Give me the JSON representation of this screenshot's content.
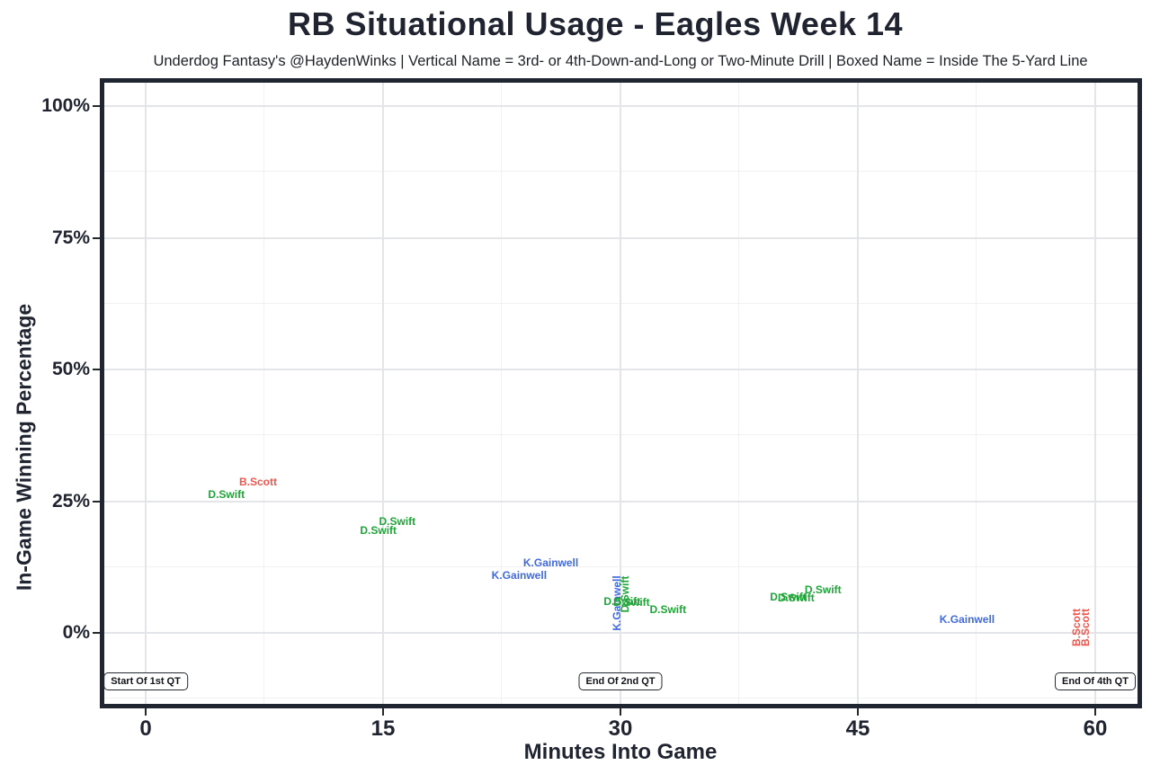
{
  "header": {
    "title": "RB Situational Usage - Eagles Week 14",
    "subtitle": "Underdog Fantasy's @HaydenWinks | Vertical Name = 3rd- or 4th-Down-and-Long or Two-Minute Drill | Boxed Name = Inside The 5-Yard Line"
  },
  "colors": {
    "d_swift": "#1ea537",
    "k_gainwell": "#4169e1",
    "b_scott": "#f2544b",
    "axis_text": "#1f2430",
    "panel_border": "#202532",
    "grid_major": "#e4e5e9",
    "grid_minor": "#f1f1f4"
  },
  "chart_data": {
    "type": "scatter",
    "title": "RB Situational Usage - Eagles Week 14",
    "xlabel": "Minutes Into Game",
    "ylabel": "In-Game Winning Percentage",
    "x_ticks": [
      {
        "value": 0,
        "label": "0"
      },
      {
        "value": 15,
        "label": "15"
      },
      {
        "value": 30,
        "label": "30"
      },
      {
        "value": 45,
        "label": "45"
      },
      {
        "value": 60,
        "label": "60"
      }
    ],
    "y_ticks": [
      {
        "value": 0,
        "label": "0%"
      },
      {
        "value": 25,
        "label": "25%"
      },
      {
        "value": 50,
        "label": "50%"
      },
      {
        "value": 75,
        "label": "75%"
      },
      {
        "value": 100,
        "label": "100%"
      }
    ],
    "x_minor_ticks": [
      7.5,
      22.5,
      37.5,
      52.5
    ],
    "y_minor_ticks": [
      -12.5,
      12.5,
      37.5,
      62.5,
      87.5
    ],
    "xlim": [
      -2.9,
      63
    ],
    "ylim": [
      -13.5,
      104.5
    ],
    "grid": true,
    "legend_position": "none",
    "series_colors": {
      "D.Swift": "#1ea537",
      "K.Gainwell": "#4169e1",
      "B.Scott": "#f2544b"
    },
    "points": [
      {
        "player": "B.Scott",
        "minutes": 7.1,
        "win_pct": 28.7,
        "orientation": "horizontal"
      },
      {
        "player": "D.Swift",
        "minutes": 5.1,
        "win_pct": 26.3,
        "orientation": "horizontal"
      },
      {
        "player": "D.Swift",
        "minutes": 15.9,
        "win_pct": 21.2,
        "orientation": "horizontal"
      },
      {
        "player": "D.Swift",
        "minutes": 14.7,
        "win_pct": 19.5,
        "orientation": "horizontal"
      },
      {
        "player": "K.Gainwell",
        "minutes": 25.6,
        "win_pct": 13.3,
        "orientation": "horizontal"
      },
      {
        "player": "K.Gainwell",
        "minutes": 23.6,
        "win_pct": 10.9,
        "orientation": "horizontal"
      },
      {
        "player": "K.Gainwell",
        "minutes": 29.8,
        "win_pct": 5.6,
        "orientation": "vertical"
      },
      {
        "player": "D.Swift",
        "minutes": 30.3,
        "win_pct": 7.3,
        "orientation": "vertical"
      },
      {
        "player": "D.Swift",
        "minutes": 30.1,
        "win_pct": 6.0,
        "orientation": "horizontal"
      },
      {
        "player": "D.Swift",
        "minutes": 30.7,
        "win_pct": 5.8,
        "orientation": "horizontal"
      },
      {
        "player": "D.Swift",
        "minutes": 33.0,
        "win_pct": 4.4,
        "orientation": "horizontal"
      },
      {
        "player": "D.Swift",
        "minutes": 40.6,
        "win_pct": 6.8,
        "orientation": "horizontal"
      },
      {
        "player": "D.Swift",
        "minutes": 41.1,
        "win_pct": 6.7,
        "orientation": "horizontal"
      },
      {
        "player": "D.Swift",
        "minutes": 42.8,
        "win_pct": 8.2,
        "orientation": "horizontal"
      },
      {
        "player": "K.Gainwell",
        "minutes": 51.9,
        "win_pct": 2.6,
        "orientation": "horizontal"
      },
      {
        "player": "B.Scott",
        "minutes": 58.8,
        "win_pct": 1.0,
        "orientation": "vertical"
      },
      {
        "player": "B.Scott",
        "minutes": 59.4,
        "win_pct": 1.0,
        "orientation": "vertical"
      }
    ],
    "annotations": [
      {
        "label": "Start Of 1st QT",
        "minutes": 0,
        "win_pct": -9.2
      },
      {
        "label": "End Of 2nd QT",
        "minutes": 30,
        "win_pct": -9.2
      },
      {
        "label": "End Of 4th QT",
        "minutes": 60,
        "win_pct": -9.2
      }
    ]
  }
}
